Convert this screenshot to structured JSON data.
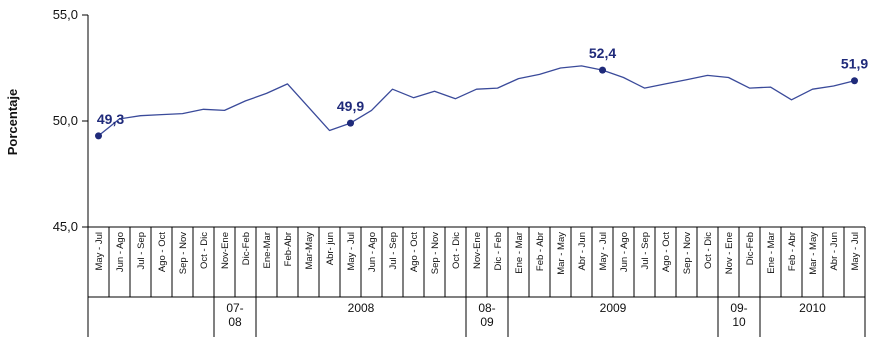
{
  "chart_data": {
    "type": "line",
    "ylabel": "Porcentaje",
    "ylim": [
      45,
      55
    ],
    "yticks": [
      "55,0",
      "50,0",
      "45,0"
    ],
    "ytick_values": [
      55,
      50,
      45
    ],
    "categories": [
      "May - Jul",
      "Jun - Ago",
      "Jul - Sep",
      "Ago - Oct",
      "Sep - Nov",
      "Oct - Dic",
      "Nov-Ene",
      "Dic-Feb",
      "Ene-Mar",
      "Feb-Abr",
      "Mar-May",
      "Abr- jun",
      "May - Jul",
      "Jun - Ago",
      "Jul - Sep",
      "Ago - Oct",
      "Sep - Nov",
      "Oct - Dic",
      "Nov-Ene",
      "Dic - Feb",
      "Ene - Mar",
      "Feb - Abr",
      "Mar - May",
      "Abr - Jun",
      "May - Jul",
      "Jun - Ago",
      "Jul - Sep",
      "Ago - Oct",
      "Sep - Nov",
      "Oct - Dic",
      "Nov - Ene",
      "Dic-Feb",
      "Ene - Mar",
      "Feb - Abr",
      "Mar - May",
      "Abr - Jun",
      "May - Jul"
    ],
    "values": [
      49.3,
      50.1,
      50.25,
      50.3,
      50.35,
      50.55,
      50.5,
      50.95,
      51.3,
      51.75,
      50.65,
      49.55,
      49.9,
      50.5,
      51.5,
      51.1,
      51.4,
      51.05,
      51.5,
      51.55,
      52.0,
      52.2,
      52.5,
      52.6,
      52.4,
      52.05,
      51.55,
      51.75,
      51.95,
      52.15,
      52.05,
      51.55,
      51.6,
      51.0,
      51.5,
      51.65,
      51.9
    ],
    "labeled_points": [
      {
        "index": 0,
        "text": "49,3"
      },
      {
        "index": 12,
        "text": "49,9"
      },
      {
        "index": 24,
        "text": "52,4"
      },
      {
        "index": 36,
        "text": "51,9"
      }
    ],
    "groups": [
      {
        "lines": [
          ""
        ],
        "start": 0,
        "end": 5
      },
      {
        "lines": [
          "07-",
          "08"
        ],
        "start": 6,
        "end": 7
      },
      {
        "lines": [
          "2008"
        ],
        "start": 8,
        "end": 17
      },
      {
        "lines": [
          "08-",
          "09"
        ],
        "start": 18,
        "end": 19
      },
      {
        "lines": [
          "2009"
        ],
        "start": 20,
        "end": 29
      },
      {
        "lines": [
          "09-",
          "10"
        ],
        "start": 30,
        "end": 31
      },
      {
        "lines": [
          "2010"
        ],
        "start": 32,
        "end": 36
      }
    ],
    "grid": false,
    "line_color": "#3a4a9a",
    "marker_color": "#1f2a7a",
    "label_color": "#1f2a7a"
  }
}
